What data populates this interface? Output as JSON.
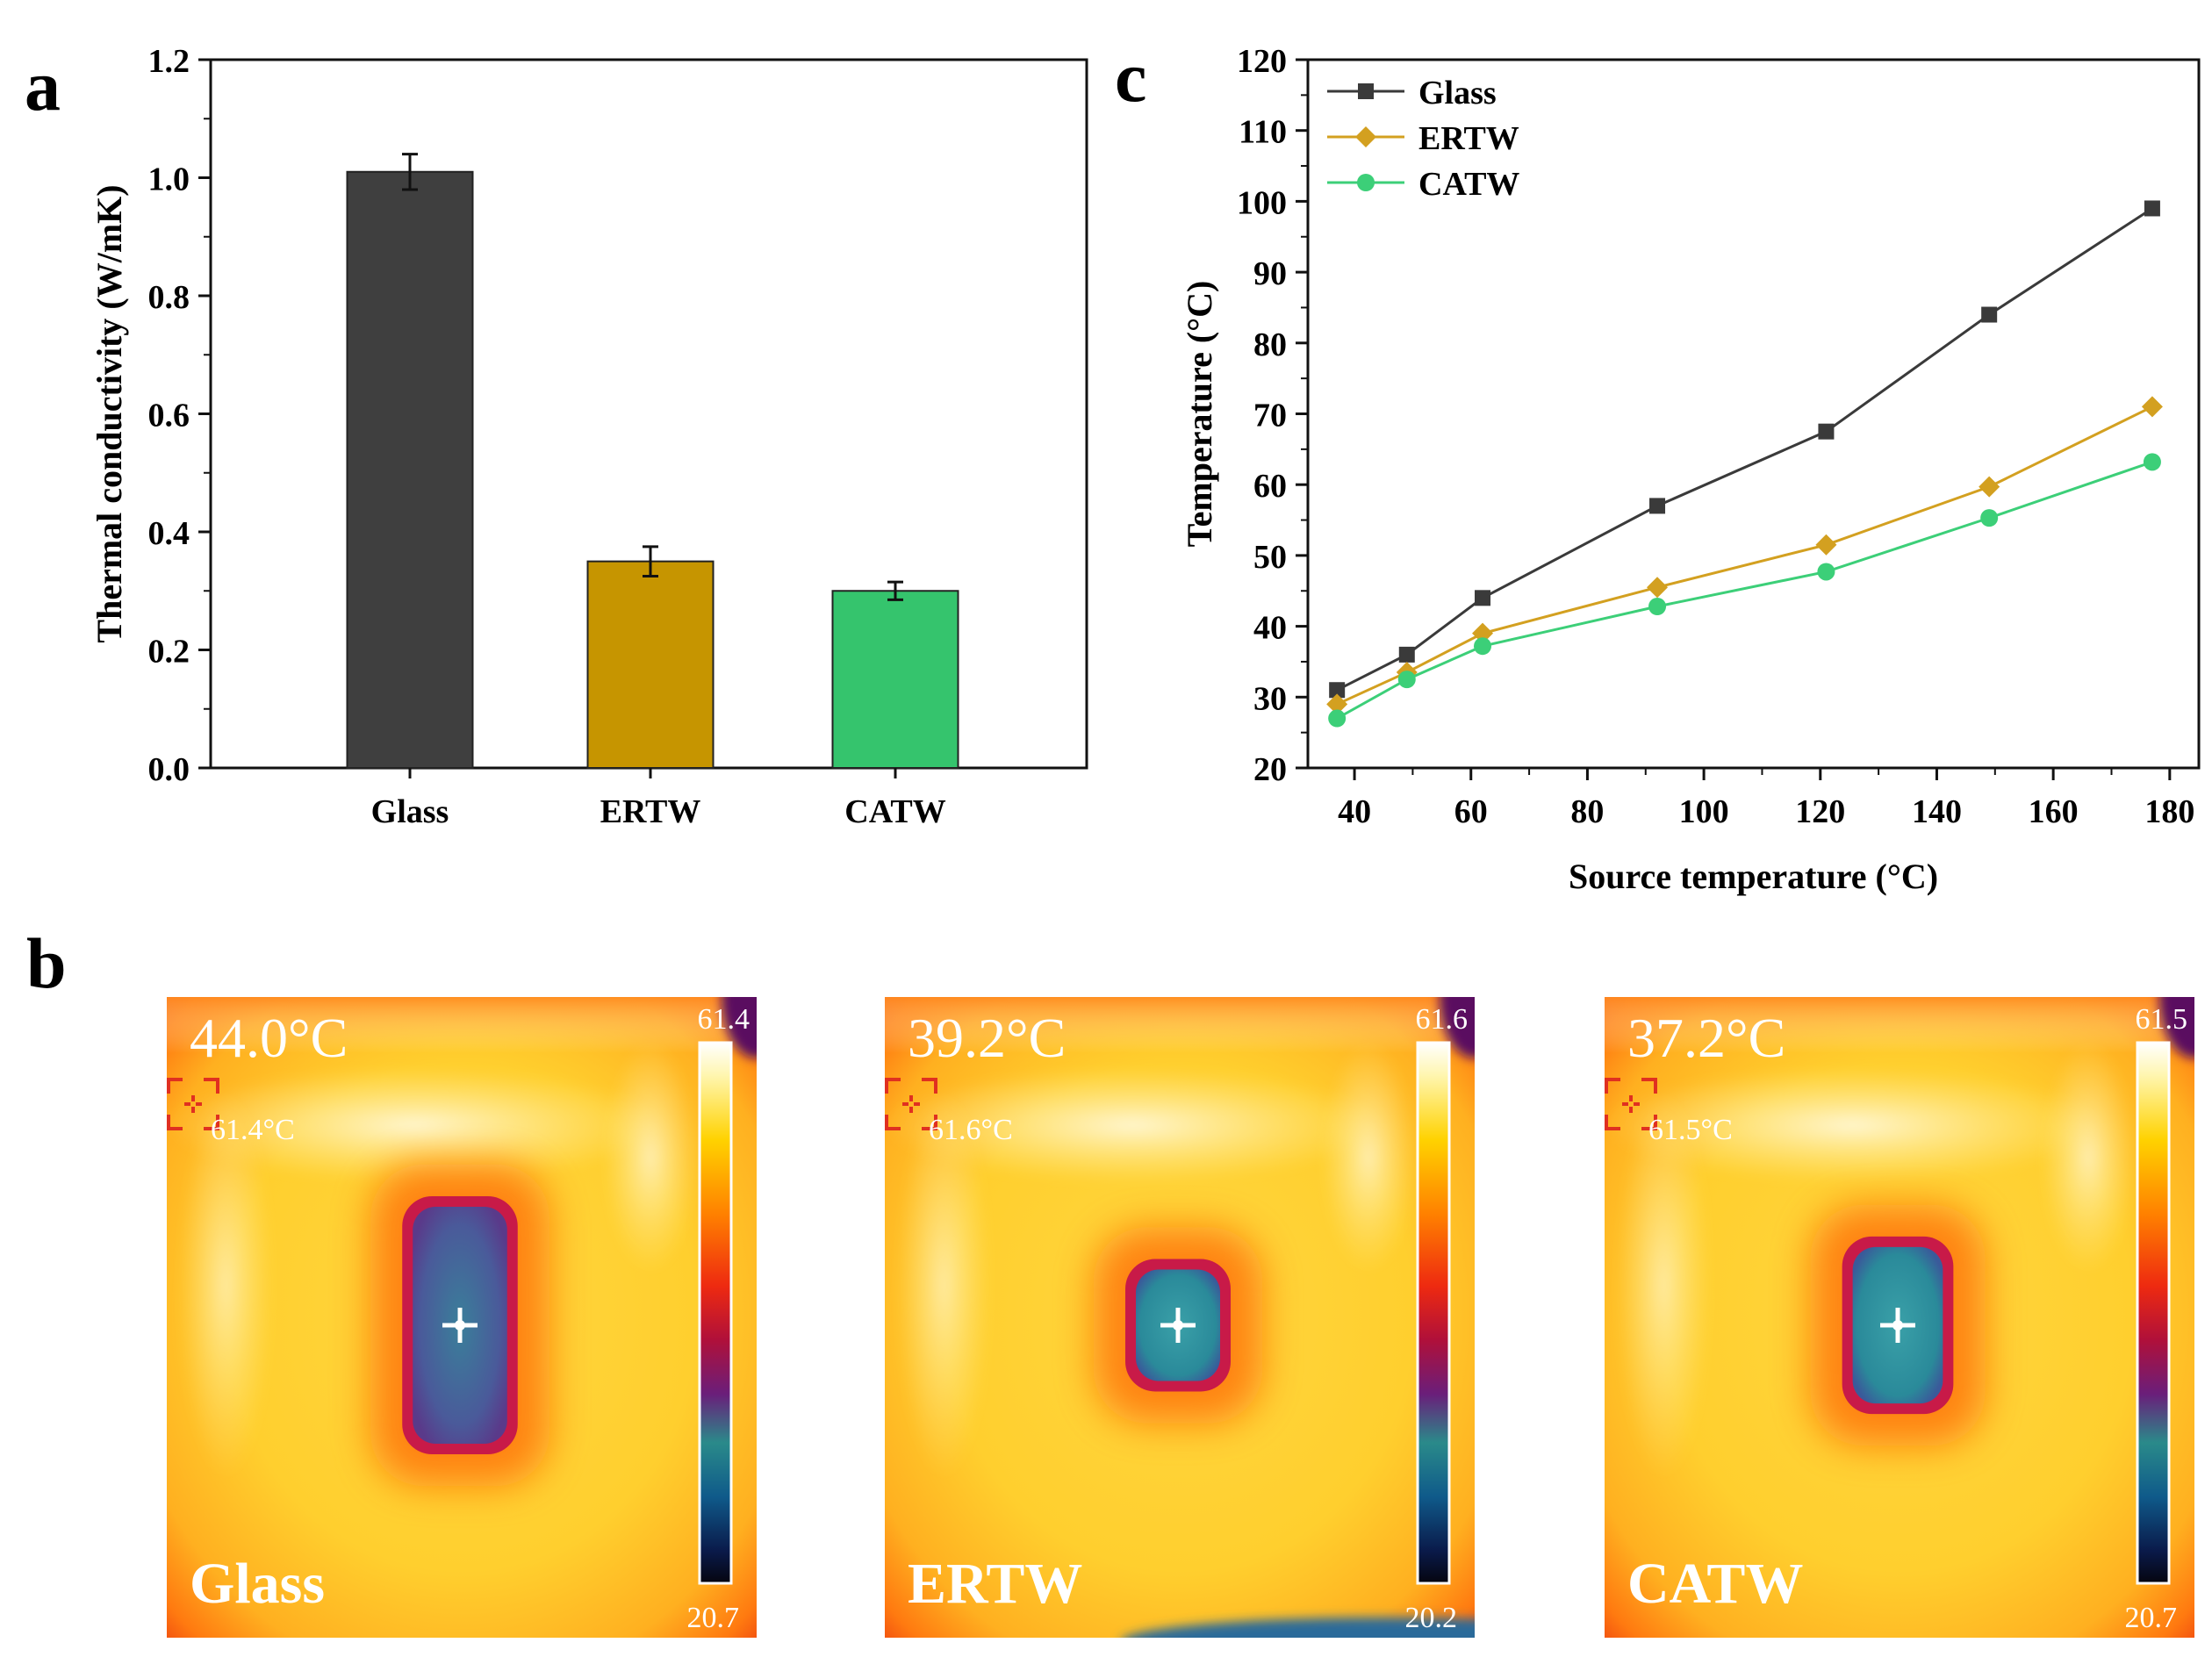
{
  "colors": {
    "glass": "#3f3f3f",
    "ertw": "#c69500",
    "catw": "#35c46d",
    "line_glass": "#3a3a3a",
    "line_ertw": "#d3a020",
    "line_catw": "#3ccf78"
  },
  "panels": {
    "a": {
      "letter": "a"
    },
    "b": {
      "letter": "b",
      "images": [
        {
          "label": "Glass",
          "temp": "44.0°C",
          "spot": "61.4°C",
          "max": "61.4",
          "min": "20.7",
          "cold_w": 0.42,
          "cold_h": 1.0,
          "variant": "glass"
        },
        {
          "label": "ERTW",
          "temp": "39.2°C",
          "spot": "61.6°C",
          "max": "61.6",
          "min": "20.2",
          "cold_w": 0.3,
          "cold_h": 0.47,
          "variant": "ertw"
        },
        {
          "label": "CATW",
          "temp": "37.2°C",
          "spot": "61.5°C",
          "max": "61.5",
          "min": "20.7",
          "cold_w": 0.37,
          "cold_h": 0.66,
          "variant": "catw"
        }
      ]
    },
    "c": {
      "letter": "c"
    }
  },
  "chart_data": [
    {
      "type": "bar",
      "panel": "a",
      "title": "",
      "xlabel": "",
      "ylabel": "Thermal conductivity (W/mK)",
      "categories": [
        "Glass",
        "ERTW",
        "CATW"
      ],
      "values": [
        1.01,
        0.35,
        0.3
      ],
      "errors": [
        0.03,
        0.025,
        0.015
      ],
      "ylim": [
        0,
        1.2
      ],
      "yticks": [
        "0.0",
        "0.2",
        "0.4",
        "0.6",
        "0.8",
        "1.0",
        "1.2"
      ]
    },
    {
      "type": "line",
      "panel": "c",
      "title": "",
      "xlabel": "Source temperature (°C)",
      "ylabel": "Temperature (°C)",
      "xlim": [
        32,
        185
      ],
      "ylim": [
        20,
        120
      ],
      "xticks": [
        "40",
        "60",
        "80",
        "100",
        "120",
        "140",
        "160",
        "180"
      ],
      "yticks": [
        "20",
        "30",
        "40",
        "50",
        "60",
        "70",
        "80",
        "90",
        "100",
        "110",
        "120"
      ],
      "x": [
        37,
        49,
        62,
        92,
        121,
        149,
        177
      ],
      "series": [
        {
          "name": "Glass",
          "marker": "square",
          "values": [
            31,
            36,
            44,
            57,
            67.5,
            84,
            99
          ]
        },
        {
          "name": "ERTW",
          "marker": "diamond",
          "values": [
            29,
            33.5,
            39,
            45.5,
            51.5,
            59.7,
            71
          ]
        },
        {
          "name": "CATW",
          "marker": "circle",
          "values": [
            27,
            32.5,
            37.2,
            42.8,
            47.7,
            55.3,
            63.2
          ]
        }
      ],
      "legend_position": "top-left"
    }
  ]
}
